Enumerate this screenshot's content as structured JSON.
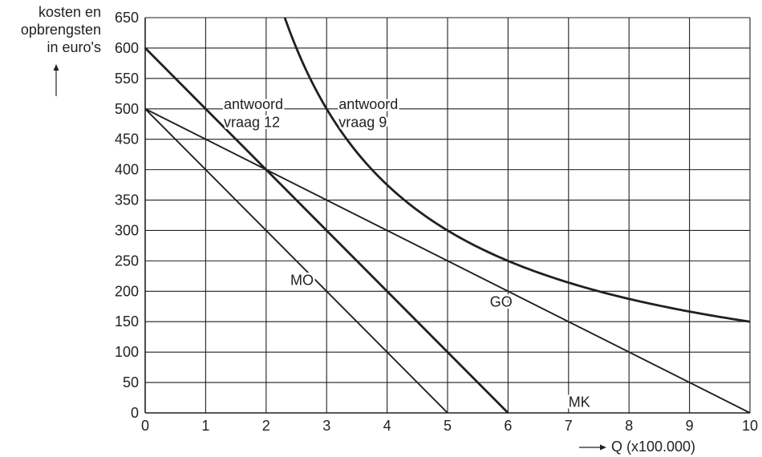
{
  "chart_data": {
    "type": "line",
    "ylabel_lines": [
      "kosten en",
      "opbrengsten",
      "in euro's"
    ],
    "xlabel": "Q (x100.000)",
    "xlim": [
      0,
      10
    ],
    "ylim": [
      0,
      650
    ],
    "x_ticks": [
      0,
      1,
      2,
      3,
      4,
      5,
      6,
      7,
      8,
      9,
      10
    ],
    "y_ticks": [
      0,
      50,
      100,
      150,
      200,
      250,
      300,
      350,
      400,
      450,
      500,
      550,
      600,
      650
    ],
    "grid": true,
    "series": [
      {
        "name": "GO",
        "style": "thin",
        "x": [
          0,
          10
        ],
        "y": [
          500,
          0
        ]
      },
      {
        "name": "MO",
        "style": "thin",
        "x": [
          0,
          5
        ],
        "y": [
          500,
          0
        ]
      },
      {
        "name": "antwoord vraag 12",
        "style": "bold",
        "x": [
          0,
          6
        ],
        "y": [
          600,
          0
        ]
      },
      {
        "name": "antwoord vraag 9",
        "style": "bold",
        "curve": "y = 1500 / x",
        "x": [
          2.3077,
          2.5,
          3,
          4,
          5,
          6,
          7,
          8,
          9,
          10
        ],
        "y": [
          650,
          600,
          500,
          375,
          300,
          250,
          214.3,
          187.5,
          166.7,
          150
        ]
      },
      {
        "name": "MK",
        "style": "none",
        "x": [],
        "y": []
      }
    ],
    "annotations": [
      {
        "text": "antwoord",
        "x": 1.3,
        "y": 500
      },
      {
        "text": "vraag 12",
        "x": 1.3,
        "y": 470
      },
      {
        "text": "antwoord",
        "x": 3.2,
        "y": 500
      },
      {
        "text": "vraag 9",
        "x": 3.2,
        "y": 470
      },
      {
        "text": "MO",
        "x": 2.4,
        "y": 210
      },
      {
        "text": "GO",
        "x": 5.7,
        "y": 175
      },
      {
        "text": "MK",
        "x": 7.0,
        "y": 10
      }
    ]
  }
}
